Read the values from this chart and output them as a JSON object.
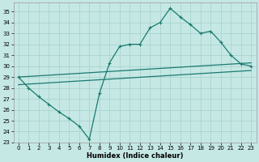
{
  "xlabel": "Humidex (Indice chaleur)",
  "background_color": "#c5e8e5",
  "grid_color": "#aad4ce",
  "line_color": "#1a7a6e",
  "xlim": [
    -0.5,
    23.5
  ],
  "ylim": [
    23,
    35.8
  ],
  "yticks": [
    23,
    24,
    25,
    26,
    27,
    28,
    29,
    30,
    31,
    32,
    33,
    34,
    35
  ],
  "xticks": [
    0,
    1,
    2,
    3,
    4,
    5,
    6,
    7,
    8,
    9,
    10,
    11,
    12,
    13,
    14,
    15,
    16,
    17,
    18,
    19,
    20,
    21,
    22,
    23
  ],
  "line1_x": [
    0,
    1,
    2,
    3,
    4,
    5,
    6,
    7,
    8,
    9,
    10,
    11,
    12,
    13,
    14,
    15,
    16,
    17,
    18,
    19,
    20,
    21,
    22,
    23
  ],
  "line1_y": [
    29.0,
    28.0,
    27.2,
    26.5,
    25.8,
    25.2,
    24.5,
    23.3,
    27.5,
    30.3,
    31.8,
    32.0,
    32.0,
    33.5,
    34.0,
    35.3,
    34.5,
    33.8,
    33.0,
    33.2,
    32.2,
    31.0,
    30.2,
    30.0
  ],
  "line2_x": [
    0,
    23
  ],
  "line2_y": [
    29.0,
    30.3
  ],
  "line3_x": [
    0,
    23
  ],
  "line3_y": [
    28.3,
    29.6
  ],
  "marker_style": "+"
}
